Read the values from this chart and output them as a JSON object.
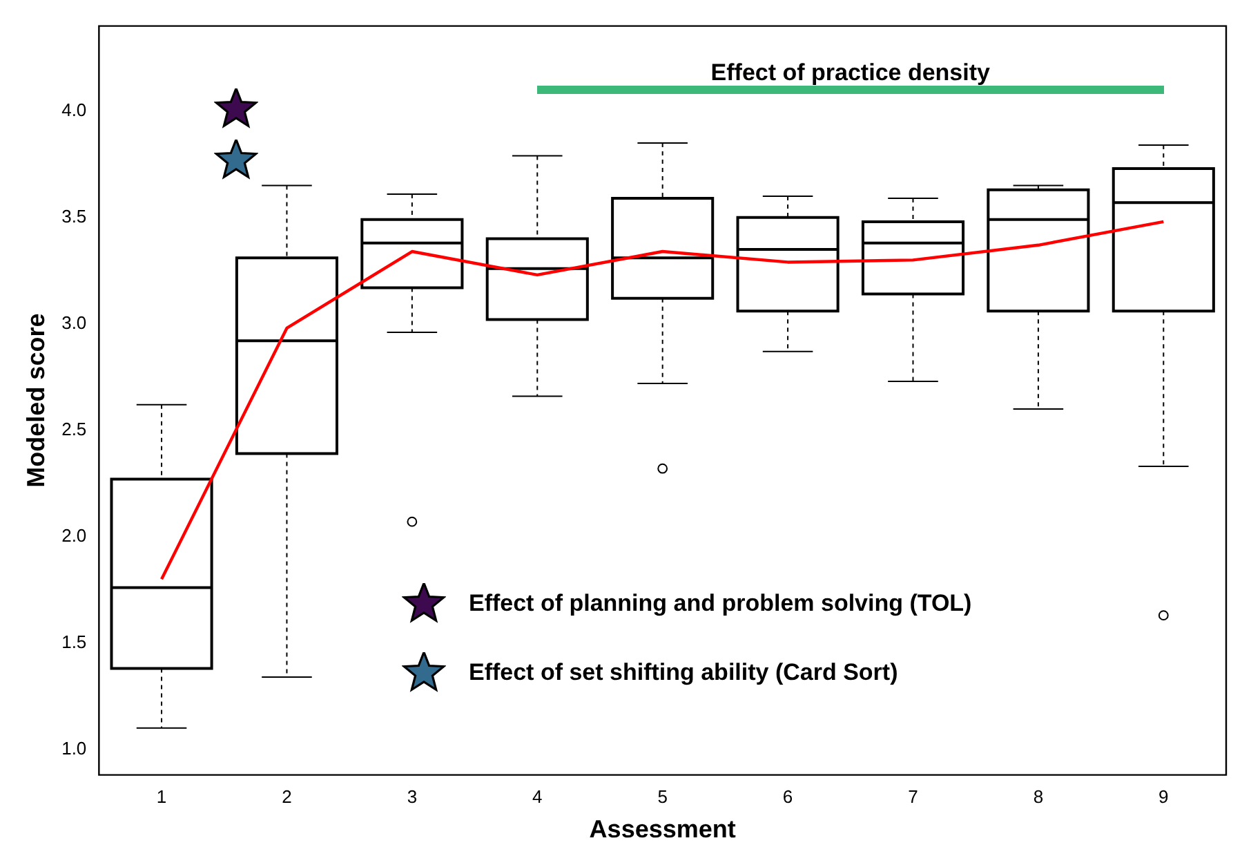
{
  "chart_data": {
    "type": "box",
    "xlabel": "Assessment",
    "ylabel": "Modeled score",
    "categories": [
      "1",
      "2",
      "3",
      "4",
      "5",
      "6",
      "7",
      "8",
      "9"
    ],
    "boxes": [
      {
        "low": 1.1,
        "q1": 1.38,
        "median": 1.76,
        "q3": 2.27,
        "high": 2.62
      },
      {
        "low": 1.34,
        "q1": 2.39,
        "median": 2.92,
        "q3": 3.31,
        "high": 3.65
      },
      {
        "low": 2.96,
        "q1": 3.17,
        "median": 3.38,
        "q3": 3.49,
        "high": 3.61,
        "outliers": [
          2.07
        ]
      },
      {
        "low": 2.66,
        "q1": 3.02,
        "median": 3.26,
        "q3": 3.4,
        "high": 3.79
      },
      {
        "low": 2.72,
        "q1": 3.12,
        "median": 3.31,
        "q3": 3.59,
        "high": 3.85,
        "outliers": [
          2.32
        ]
      },
      {
        "low": 2.87,
        "q1": 3.06,
        "median": 3.35,
        "q3": 3.5,
        "high": 3.6
      },
      {
        "low": 2.73,
        "q1": 3.14,
        "median": 3.38,
        "q3": 3.48,
        "high": 3.59
      },
      {
        "low": 2.6,
        "q1": 3.06,
        "median": 3.49,
        "q3": 3.63,
        "high": 3.65
      },
      {
        "low": 2.33,
        "q1": 3.06,
        "median": 3.57,
        "q3": 3.73,
        "high": 3.84,
        "outliers": [
          1.63
        ]
      }
    ],
    "series": [
      {
        "type": "line",
        "color": "#ff0000",
        "values": [
          1.8,
          2.98,
          3.34,
          3.23,
          3.34,
          3.29,
          3.3,
          3.37,
          3.48
        ]
      }
    ],
    "marker": "none",
    "ylim": [
      0.88,
      4.4
    ],
    "yticks": [
      {
        "value": 1,
        "label": "1.0"
      },
      {
        "value": 1.5,
        "label": "1.5"
      },
      {
        "value": 2,
        "label": "2.0"
      },
      {
        "value": 2.5,
        "label": "2.5"
      },
      {
        "value": 3,
        "label": "3.0"
      },
      {
        "value": 3.5,
        "label": "3.5"
      },
      {
        "value": 4,
        "label": "4.0"
      }
    ],
    "annotations": [
      "Effect of practice density",
      "Effect of planning and problem solving (TOL)",
      "Effect of set shifting ability (Card Sort)"
    ]
  }
}
